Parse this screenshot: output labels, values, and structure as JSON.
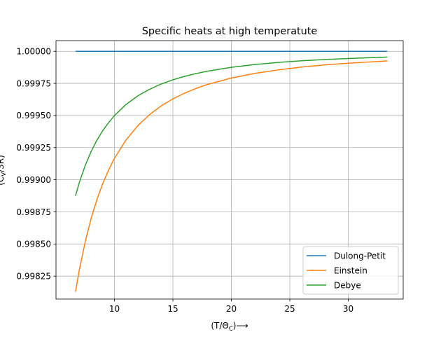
{
  "chart_data": {
    "type": "line",
    "title": "Specific heats at high temperatute",
    "xlabel": "(T/Θ",
    "xlabel_sub": "C",
    "xlabel_suffix": ")⟶",
    "ylabel": "(C",
    "ylabel_sub": "V",
    "ylabel_suffix": "/3R)",
    "xlim": [
      5.0,
      34.7
    ],
    "ylim": [
      0.998071,
      1.000083
    ],
    "xticks": [
      10,
      15,
      20,
      25,
      30
    ],
    "yticks": [
      0.99825,
      0.9985,
      0.99875,
      0.999,
      0.99925,
      0.9995,
      0.99975,
      1.0
    ],
    "ytick_labels": [
      "0.99825",
      "0.99850",
      "0.99875",
      "0.99900",
      "0.99925",
      "0.99950",
      "0.99975",
      "1.00000"
    ],
    "grid": true,
    "legend_position": "lower-right",
    "series": [
      {
        "name": "Dulong-Petit",
        "color": "#1f77b4",
        "x": [
          6.67,
          33.33
        ],
        "y": [
          1.0,
          1.0
        ]
      },
      {
        "name": "Einstein",
        "color": "#ff7f0e",
        "x": [
          6.67,
          7.0,
          7.5,
          8.0,
          8.5,
          9.0,
          9.5,
          10.0,
          11.0,
          12.0,
          13.0,
          14.0,
          15.0,
          16.0,
          17.0,
          18.0,
          20.0,
          22.0,
          24.0,
          26.0,
          28.0,
          30.0,
          33.33
        ],
        "y": [
          0.998128,
          0.998299,
          0.998518,
          0.998698,
          0.998846,
          0.998971,
          0.999076,
          0.999167,
          0.999311,
          0.999421,
          0.999507,
          0.999575,
          0.99963,
          0.999674,
          0.999712,
          0.999743,
          0.999792,
          0.999828,
          0.999855,
          0.999877,
          0.999894,
          0.999907,
          0.999925
        ]
      },
      {
        "name": "Debye",
        "color": "#2ca02c",
        "x": [
          6.67,
          7.0,
          7.5,
          8.0,
          8.5,
          9.0,
          9.5,
          10.0,
          11.0,
          12.0,
          13.0,
          14.0,
          15.0,
          16.0,
          17.0,
          18.0,
          20.0,
          22.0,
          24.0,
          26.0,
          28.0,
          30.0,
          33.33
        ],
        "y": [
          0.998875,
          0.99898,
          0.999111,
          0.999219,
          0.999308,
          0.999383,
          0.999444,
          0.9995,
          0.999587,
          0.999653,
          0.999704,
          0.999745,
          0.999778,
          0.999805,
          0.999827,
          0.999846,
          0.999875,
          0.999897,
          0.999913,
          0.999926,
          0.999936,
          0.999944,
          0.999955
        ]
      }
    ]
  }
}
